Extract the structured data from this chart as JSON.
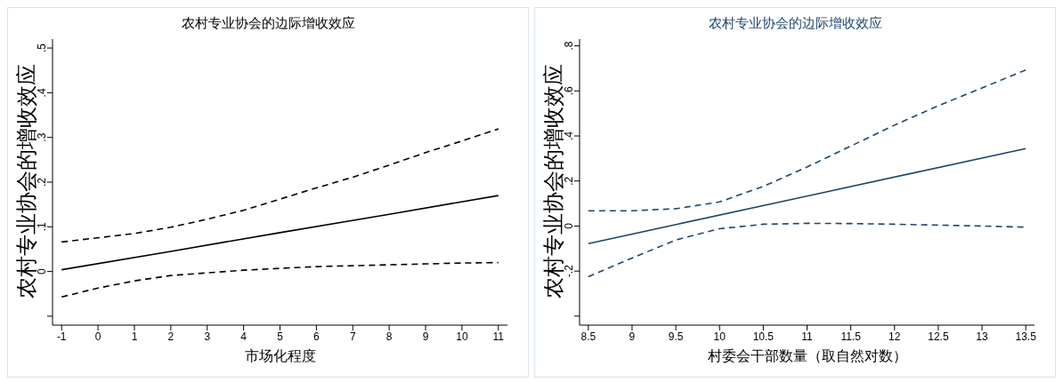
{
  "chart_data": [
    {
      "type": "line",
      "title": "农村专业协会的边际增收效应",
      "xlabel": "市场化程度",
      "ylabel": "农村专业协会的增收效应",
      "xlim": [
        -1.25,
        11.25
      ],
      "xticks": [
        -1,
        0,
        1,
        2,
        3,
        4,
        5,
        6,
        7,
        8,
        9,
        10,
        11
      ],
      "ylim": [
        -0.12,
        0.52
      ],
      "yticks": [
        {
          "value": -0.1,
          "label": null
        },
        0,
        {
          "value": 0.1,
          "label": ".1"
        },
        {
          "value": 0.2,
          "label": ".2"
        },
        {
          "value": 0.3,
          "label": ".3"
        },
        {
          "value": 0.4,
          "label": ".4"
        },
        {
          "value": 0.5,
          "label": ".5"
        }
      ],
      "grid": false,
      "legend": false,
      "marker": "none",
      "series": [
        {
          "color": "#000000",
          "line_style": "solid",
          "x": [
            -1,
            2,
            5,
            8,
            11
          ],
          "values": [
            0.004,
            0.045,
            0.087,
            0.128,
            0.17
          ]
        },
        {
          "color": "#000000",
          "line_style": "dashed",
          "x": [
            -1,
            1,
            2,
            3,
            4,
            5,
            6,
            7,
            8,
            9,
            10,
            11
          ],
          "values": [
            0.066,
            0.085,
            0.099,
            0.117,
            0.137,
            0.162,
            0.187,
            0.211,
            0.238,
            0.266,
            0.292,
            0.319
          ]
        },
        {
          "color": "#000000",
          "line_style": "dashed",
          "x": [
            -1,
            0,
            1,
            2,
            3,
            4,
            5,
            6,
            7,
            8,
            9,
            10,
            11
          ],
          "values": [
            -0.057,
            -0.037,
            -0.021,
            -0.009,
            -0.003,
            0.003,
            0.007,
            0.011,
            0.013,
            0.015,
            0.017,
            0.019,
            0.02
          ]
        }
      ]
    },
    {
      "type": "line",
      "title": "农村专业协会的边际增收效应",
      "xlabel": "村委会干部数量（取自然对数）",
      "ylabel": "农村专业协会的增收效应",
      "xlim": [
        8.4,
        13.6
      ],
      "xticks": [
        8.5,
        9,
        9.5,
        10,
        10.5,
        11,
        11.5,
        12,
        12.5,
        13,
        13.5
      ],
      "ylim": [
        -0.44,
        0.83
      ],
      "yticks": [
        {
          "value": -0.4,
          "label": null
        },
        {
          "value": -0.2,
          "label": "-.2"
        },
        0,
        {
          "value": 0.2,
          "label": ".2"
        },
        {
          "value": 0.4,
          "label": ".4"
        },
        {
          "value": 0.6,
          "label": ".6"
        },
        {
          "value": 0.8,
          "label": ".8"
        }
      ],
      "grid": false,
      "legend": false,
      "marker": "none",
      "series": [
        {
          "color": "#1a476f",
          "line_style": "solid",
          "x": [
            8.5,
            11,
            13.5
          ],
          "values": [
            -0.078,
            0.133,
            0.344
          ]
        },
        {
          "color": "#1a476f",
          "line_style": "dashed",
          "x": [
            8.5,
            9,
            9.5,
            10,
            10.5,
            11,
            11.5,
            12,
            12.5,
            13,
            13.5
          ],
          "values": [
            0.068,
            0.068,
            0.077,
            0.107,
            0.176,
            0.262,
            0.355,
            0.448,
            0.534,
            0.613,
            0.693
          ]
        },
        {
          "color": "#1a476f",
          "line_style": "dashed",
          "x": [
            8.5,
            9,
            9.5,
            10,
            10.5,
            11,
            11.5,
            12,
            12.5,
            13,
            13.5
          ],
          "values": [
            -0.225,
            -0.142,
            -0.062,
            -0.012,
            0.008,
            0.012,
            0.011,
            0.008,
            0.004,
            0,
            -0.005
          ]
        }
      ]
    }
  ]
}
